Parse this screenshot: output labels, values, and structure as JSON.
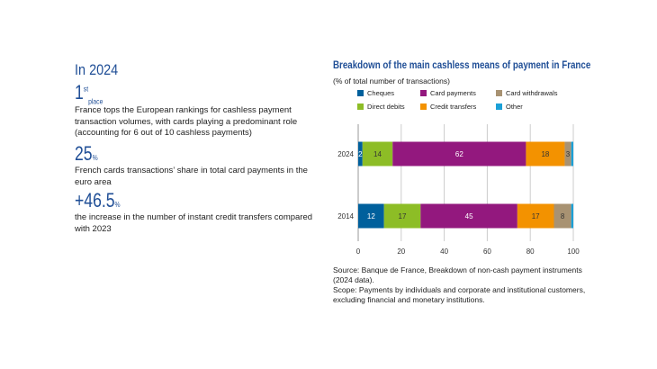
{
  "left": {
    "heading": "In 2024",
    "stat1": {
      "value": "1",
      "sup": "st",
      "sub": "place",
      "text": "France tops the European rankings for cashless payment transaction volumes, with cards playing a predominant role (accounting for 6 out of 10 cashless payments)"
    },
    "stat2": {
      "value": "25",
      "unit": "%",
      "text": "French cards transactions’ share in total card payments in the euro area"
    },
    "stat3": {
      "value": "+46.5",
      "unit": "%",
      "text": "the increase in the number of instant credit transfers compared with 2023"
    }
  },
  "chart_data": {
    "type": "bar",
    "orientation": "horizontal",
    "stacked": true,
    "title": "Breakdown of the main cashless means of payment in France",
    "subtitle": "(% of total number of transactions)",
    "categories": [
      "2024",
      "2014"
    ],
    "xlim": [
      0,
      100
    ],
    "xticks": [
      "0",
      "20",
      "40",
      "60",
      "80",
      "100"
    ],
    "grid": true,
    "legend_position": "top",
    "series": [
      {
        "name": "Cheques",
        "color": "#00609c",
        "values": [
          2,
          12
        ]
      },
      {
        "name": "Direct debits",
        "color": "#8dbd26",
        "values": [
          14,
          17
        ]
      },
      {
        "name": "Card payments",
        "color": "#93187e",
        "values": [
          62,
          45
        ]
      },
      {
        "name": "Credit transfers",
        "color": "#f39200",
        "values": [
          18,
          17
        ]
      },
      {
        "name": "Card withdrawals",
        "color": "#a89272",
        "values": [
          3,
          8
        ]
      },
      {
        "name": "Other",
        "color": "#1ba0d7",
        "values": [
          1,
          1
        ]
      }
    ]
  },
  "source": {
    "line1": "Source: Banque de France, Breakdown of non-cash payment instruments (2024 data).",
    "line2": "Scope: Payments by individuals and corporate and institutional customers, excluding financial and monetary institutions."
  }
}
